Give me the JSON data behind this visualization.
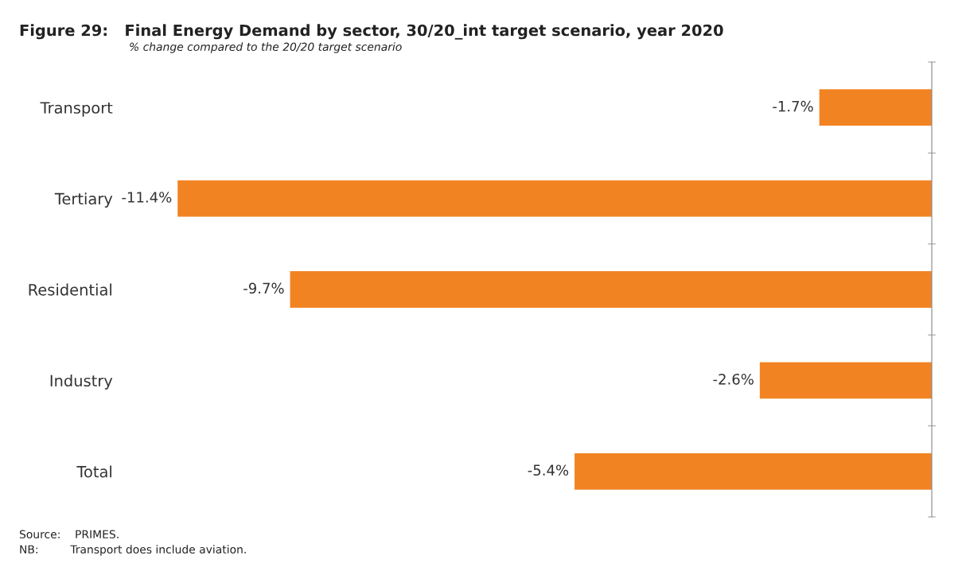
{
  "chart_data": {
    "type": "bar",
    "orientation": "horizontal",
    "title": "Figure 29:   Final Energy Demand by sector, 30/20_int target scenario, year 2020",
    "subtitle": "% change compared to the 20/20 target scenario",
    "categories": [
      "Transport",
      "Tertiary",
      "Residential",
      "Industry",
      "Total"
    ],
    "values": [
      -1.7,
      -11.4,
      -9.7,
      -2.6,
      -5.4
    ],
    "value_labels": [
      "-1.7%",
      "-11.4%",
      "-9.7%",
      "-2.6%",
      "-5.4%"
    ],
    "color": "#f28322",
    "annotations": [
      "Source:    PRIMES.",
      "NB:         Transport does include aviation."
    ]
  }
}
